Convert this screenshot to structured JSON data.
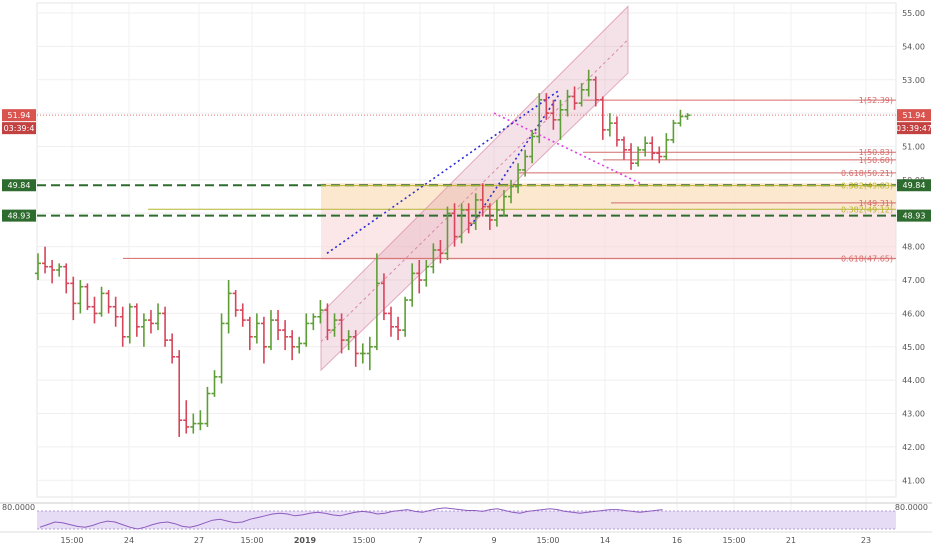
{
  "chart_data": {
    "type": "bar",
    "x_labels": [
      "15:00",
      "24",
      "27",
      "15:00",
      "2019",
      "15:00",
      "7",
      "9",
      "15:00",
      "14",
      "16",
      "15:00",
      "21",
      "23"
    ],
    "y_ticks": [
      "55.00",
      "54.00",
      "53.00",
      "52.00",
      "51.00",
      "50.00",
      "49.00",
      "48.00",
      "47.00",
      "46.00",
      "45.00",
      "44.00",
      "43.00",
      "42.00",
      "41.00"
    ],
    "ylim": [
      40.5,
      55.3
    ],
    "price_tag": {
      "left_value": "51.94",
      "left_time": "03:39:4",
      "right_value": "51.94",
      "right_time": "03:39:47",
      "value": 51.94
    },
    "horizontal_levels": [
      {
        "label": "49.84",
        "value": 49.84,
        "color": "#2e7d32"
      },
      {
        "label": "48.93",
        "value": 48.93,
        "color": "#2e7d32"
      }
    ],
    "fib_labels": [
      {
        "text": "1(52.39)",
        "value": 52.39
      },
      {
        "text": "1(50.83)",
        "value": 50.83
      },
      {
        "text": "1(50.60)",
        "value": 50.6
      },
      {
        "text": "0.618(50.21)",
        "value": 50.21
      },
      {
        "text": "0.382(49.83)",
        "value": 49.83
      },
      {
        "text": "1(49.31)",
        "value": 49.31
      },
      {
        "text": "0.382(49.12)",
        "value": 49.12
      },
      {
        "text": "0.618(47.65)",
        "value": 47.65
      }
    ],
    "indicator": {
      "label": "80.0000",
      "right_label": "80.0000",
      "values": [
        57,
        60,
        63,
        62,
        60,
        58,
        57,
        59,
        62,
        64,
        63,
        60,
        57,
        55,
        57,
        60,
        62,
        63,
        61,
        58,
        57,
        59,
        62,
        65,
        66,
        64,
        62,
        63,
        66,
        68,
        70,
        72,
        73,
        72,
        70,
        71,
        73,
        74,
        73,
        71,
        70,
        72,
        74,
        75,
        74,
        72,
        73,
        75,
        76,
        77,
        75,
        74,
        76,
        78,
        79,
        78,
        77,
        76,
        76,
        75,
        77,
        78,
        76,
        74,
        73,
        75,
        76,
        77,
        78,
        77,
        75,
        74,
        73,
        74,
        75,
        76,
        77,
        77,
        76,
        75,
        74,
        75,
        76,
        77
      ]
    },
    "ohlc": [
      [
        47.2,
        47.8,
        47.0,
        47.5
      ],
      [
        47.5,
        48.0,
        47.2,
        47.4
      ],
      [
        47.4,
        47.6,
        46.9,
        47.3
      ],
      [
        47.3,
        47.5,
        47.1,
        47.4
      ],
      [
        47.4,
        47.5,
        46.6,
        46.9
      ],
      [
        46.9,
        47.1,
        45.8,
        46.3
      ],
      [
        46.3,
        47.0,
        46.0,
        46.8
      ],
      [
        46.8,
        46.9,
        46.1,
        46.2
      ],
      [
        46.2,
        46.5,
        45.7,
        46.0
      ],
      [
        46.0,
        46.8,
        45.9,
        46.6
      ],
      [
        46.6,
        46.7,
        46.0,
        46.2
      ],
      [
        46.2,
        46.5,
        45.6,
        45.9
      ],
      [
        45.9,
        46.2,
        45.0,
        45.3
      ],
      [
        45.3,
        46.3,
        45.1,
        46.2
      ],
      [
        46.2,
        46.3,
        45.3,
        45.6
      ],
      [
        45.6,
        46.0,
        45.0,
        45.8
      ],
      [
        45.8,
        46.1,
        45.4,
        45.7
      ],
      [
        45.7,
        46.3,
        45.5,
        46.0
      ],
      [
        46.0,
        46.2,
        45.0,
        45.2
      ],
      [
        45.2,
        45.4,
        44.5,
        44.7
      ],
      [
        44.7,
        44.9,
        42.3,
        42.8
      ],
      [
        42.8,
        43.4,
        42.4,
        42.6
      ],
      [
        42.6,
        43.0,
        42.4,
        42.7
      ],
      [
        42.7,
        43.1,
        42.5,
        42.7
      ],
      [
        42.7,
        43.8,
        42.6,
        43.6
      ],
      [
        43.6,
        44.3,
        43.5,
        44.1
      ],
      [
        44.1,
        46.0,
        43.9,
        45.7
      ],
      [
        45.7,
        47.0,
        45.4,
        46.6
      ],
      [
        46.6,
        46.7,
        45.9,
        46.1
      ],
      [
        46.1,
        46.3,
        45.6,
        45.8
      ],
      [
        45.8,
        45.9,
        44.9,
        45.3
      ],
      [
        45.3,
        46.0,
        45.1,
        45.7
      ],
      [
        45.7,
        45.9,
        44.5,
        45.0
      ],
      [
        45.0,
        46.1,
        44.9,
        45.8
      ],
      [
        45.8,
        46.1,
        45.2,
        45.5
      ],
      [
        45.5,
        45.8,
        44.9,
        45.3
      ],
      [
        45.3,
        45.5,
        44.6,
        45.0
      ],
      [
        45.0,
        45.3,
        44.8,
        45.1
      ],
      [
        45.1,
        46.0,
        45.0,
        45.7
      ],
      [
        45.7,
        46.0,
        45.5,
        45.9
      ],
      [
        45.9,
        46.4,
        45.7,
        46.1
      ],
      [
        46.1,
        46.3,
        45.2,
        45.5
      ],
      [
        45.5,
        46.0,
        45.3,
        45.8
      ],
      [
        45.8,
        46.0,
        44.8,
        45.2
      ],
      [
        45.2,
        45.5,
        44.9,
        45.3
      ],
      [
        45.3,
        45.5,
        44.4,
        44.8
      ],
      [
        44.8,
        45.1,
        44.5,
        44.8
      ],
      [
        44.8,
        45.3,
        44.3,
        45.0
      ],
      [
        45.0,
        47.8,
        44.9,
        46.9
      ],
      [
        46.9,
        47.2,
        45.8,
        46.0
      ],
      [
        46.0,
        46.2,
        45.3,
        45.6
      ],
      [
        45.6,
        45.9,
        45.2,
        45.5
      ],
      [
        45.5,
        46.5,
        45.3,
        46.4
      ],
      [
        46.4,
        47.5,
        46.2,
        47.2
      ],
      [
        47.2,
        47.6,
        46.6,
        47.0
      ],
      [
        47.0,
        47.6,
        46.8,
        47.4
      ],
      [
        47.4,
        48.1,
        47.2,
        47.9
      ],
      [
        47.9,
        48.2,
        47.5,
        47.8
      ],
      [
        47.8,
        49.2,
        47.6,
        49.0
      ],
      [
        49.0,
        49.3,
        48.0,
        48.3
      ],
      [
        48.3,
        49.3,
        48.1,
        49.1
      ],
      [
        49.1,
        49.3,
        48.4,
        48.7
      ],
      [
        48.7,
        49.6,
        48.5,
        49.4
      ],
      [
        49.4,
        49.9,
        48.9,
        49.2
      ],
      [
        49.2,
        49.3,
        48.5,
        48.8
      ],
      [
        48.8,
        49.4,
        48.6,
        49.1
      ],
      [
        49.1,
        49.7,
        48.9,
        49.5
      ],
      [
        49.5,
        50.0,
        49.3,
        49.8
      ],
      [
        49.8,
        50.5,
        49.6,
        50.3
      ],
      [
        50.3,
        50.9,
        50.1,
        50.7
      ],
      [
        50.7,
        51.5,
        50.5,
        51.3
      ],
      [
        51.3,
        52.6,
        51.1,
        52.4
      ],
      [
        52.4,
        52.6,
        51.8,
        52.0
      ],
      [
        52.0,
        52.4,
        51.5,
        51.8
      ],
      [
        51.8,
        52.4,
        51.2,
        52.1
      ],
      [
        52.1,
        52.7,
        51.9,
        52.5
      ],
      [
        52.5,
        52.8,
        52.1,
        52.3
      ],
      [
        52.3,
        52.9,
        52.2,
        52.7
      ],
      [
        52.7,
        53.3,
        52.5,
        53.0
      ],
      [
        53.0,
        53.1,
        52.2,
        52.4
      ],
      [
        52.4,
        52.5,
        51.2,
        51.5
      ],
      [
        51.5,
        52.0,
        51.3,
        51.7
      ],
      [
        51.7,
        51.9,
        51.0,
        51.2
      ],
      [
        51.2,
        51.3,
        50.6,
        50.9
      ],
      [
        50.9,
        51.1,
        50.3,
        50.5
      ],
      [
        50.5,
        51.0,
        50.4,
        50.9
      ],
      [
        50.9,
        51.3,
        50.7,
        51.1
      ],
      [
        51.1,
        51.3,
        50.6,
        50.8
      ],
      [
        50.8,
        51.0,
        50.5,
        50.7
      ],
      [
        50.7,
        51.4,
        50.6,
        51.2
      ],
      [
        51.2,
        51.8,
        51.1,
        51.7
      ],
      [
        51.7,
        52.1,
        51.6,
        51.9
      ],
      [
        51.9,
        52.0,
        51.8,
        51.94
      ]
    ]
  }
}
